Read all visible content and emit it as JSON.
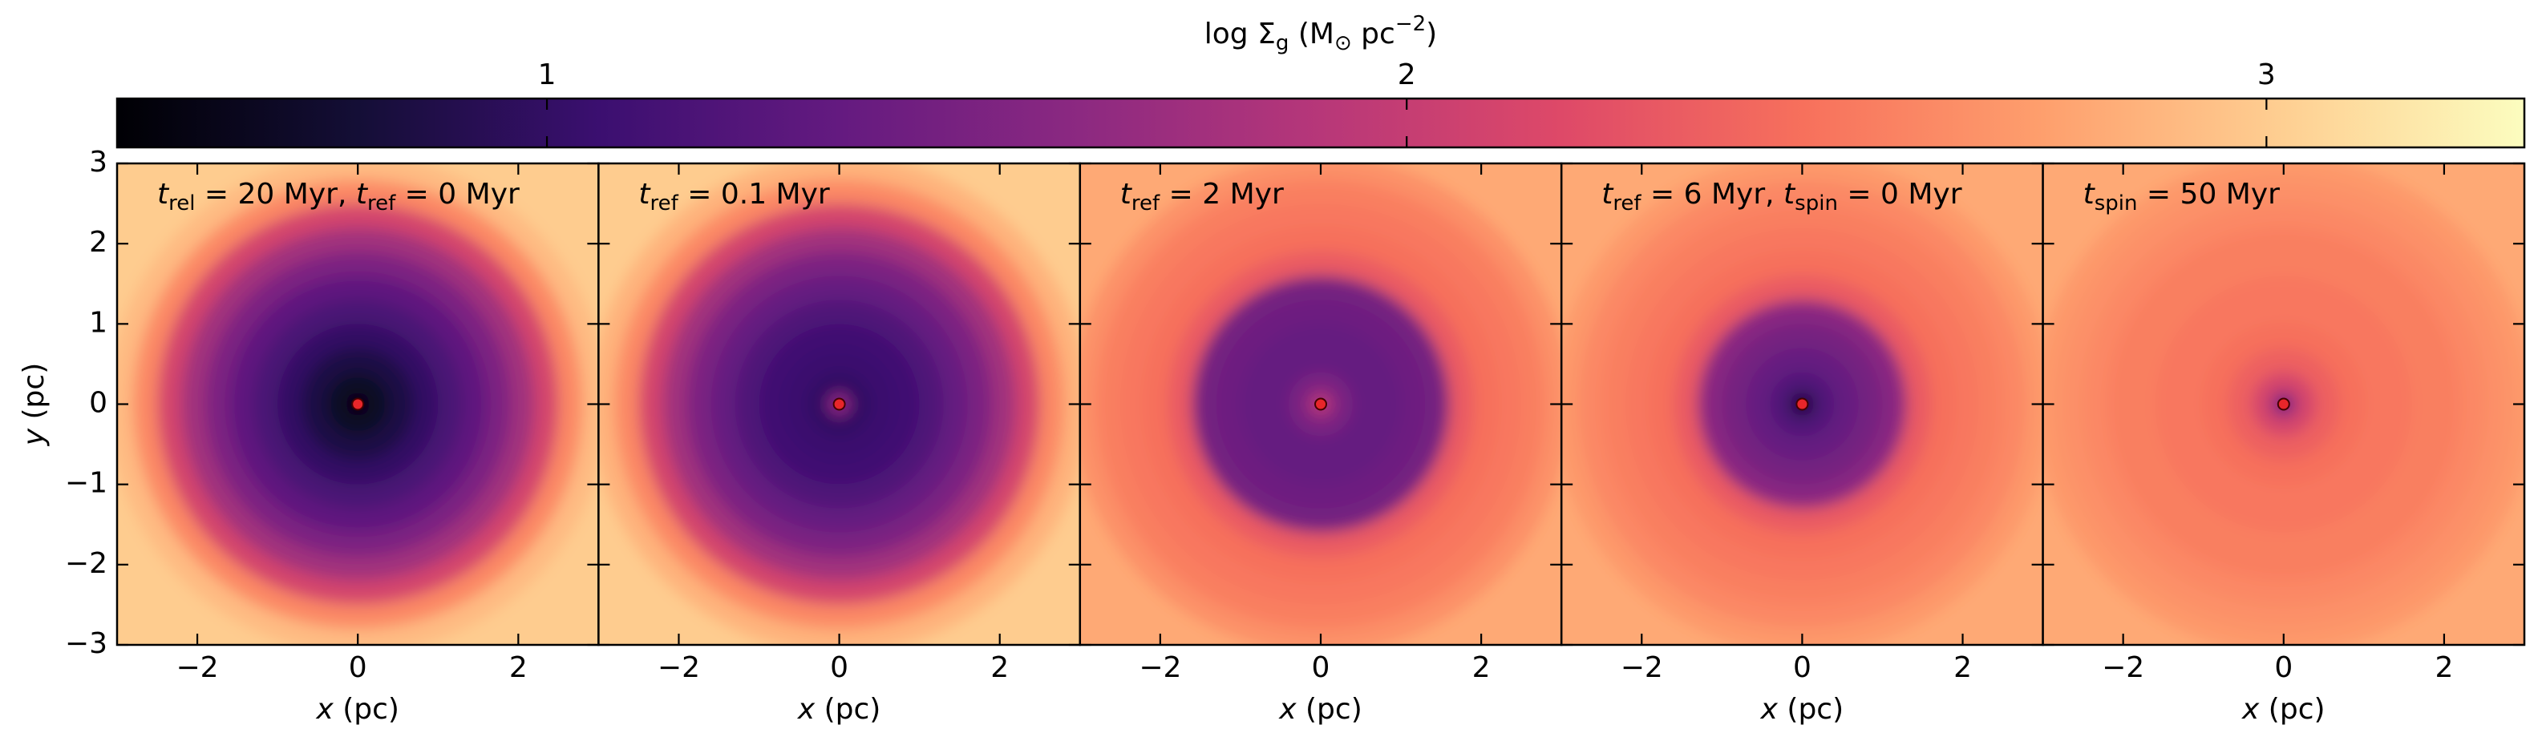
{
  "colorbar": {
    "label": [
      {
        "text": "log Σ"
      },
      {
        "sub": "g"
      },
      {
        "text": " (M"
      },
      {
        "sub": "⊙"
      },
      {
        "text": " pc"
      },
      {
        "sup": "−2"
      },
      {
        "text": ")"
      }
    ],
    "colormap": "magma",
    "lim": [
      0.5,
      3.3
    ],
    "ticks": [
      1,
      2,
      3
    ]
  },
  "chart_data": [
    {
      "type": "heatmap",
      "annotation": [
        {
          "var": "t"
        },
        {
          "sub": "rel"
        },
        {
          "text": " = 20 Myr, "
        },
        {
          "var": "t"
        },
        {
          "sub": "ref"
        },
        {
          "text": " = 0 Myr"
        }
      ],
      "xlabel": [
        {
          "var": "x"
        },
        {
          "text": " (pc)"
        }
      ],
      "ylabel": [
        {
          "var": "y"
        },
        {
          "text": " (pc)"
        }
      ],
      "show_ytick_labels": true,
      "xlim": [
        -3,
        3
      ],
      "ylim": [
        -3,
        3
      ],
      "xticks": [
        {
          "value": -2,
          "label": "−2"
        },
        0,
        2
      ],
      "yticks": [
        {
          "value": -3,
          "label": "−3"
        },
        {
          "value": -2,
          "label": "−2"
        },
        {
          "value": -1,
          "label": "−1"
        },
        0,
        1,
        2,
        3
      ],
      "radius": [
        0.15,
        0.4,
        0.7,
        1,
        1.3,
        1.6,
        1.9,
        2.2,
        2.5,
        2.8,
        3.1,
        4.3
      ],
      "values": [
        0.6,
        0.7,
        0.85,
        1.0,
        1.15,
        1.3,
        1.5,
        1.75,
        2.1,
        2.6,
        2.9,
        3.0
      ],
      "center": {
        "x": 0,
        "y": 0,
        "color": "#e8262a"
      }
    },
    {
      "type": "heatmap",
      "annotation": [
        {
          "var": "t"
        },
        {
          "sub": "ref"
        },
        {
          "text": " = 0.1 Myr"
        }
      ],
      "xlabel": [
        {
          "var": "x"
        },
        {
          "text": " (pc)"
        }
      ],
      "show_ytick_labels": false,
      "xlim": [
        -3,
        3
      ],
      "ylim": [
        -3,
        3
      ],
      "xticks": [
        {
          "value": -2,
          "label": "−2"
        },
        0,
        2
      ],
      "yticks": [
        {
          "value": -3,
          "label": "−3"
        },
        {
          "value": -2,
          "label": "−2"
        },
        {
          "value": -1,
          "label": "−1"
        },
        0,
        1,
        2,
        3
      ],
      "radius": [
        0.15,
        0.4,
        0.7,
        1,
        1.3,
        1.6,
        1.9,
        2.2,
        2.5,
        2.8,
        3.1,
        4.3
      ],
      "values": [
        1.6,
        1.0,
        1.05,
        1.1,
        1.2,
        1.35,
        1.5,
        1.75,
        2.1,
        2.6,
        2.85,
        3.0
      ],
      "center": {
        "x": 0,
        "y": 0,
        "color": "#e8262a"
      }
    },
    {
      "type": "heatmap",
      "annotation": [
        {
          "var": "t"
        },
        {
          "sub": "ref"
        },
        {
          "text": " = 2 Myr"
        }
      ],
      "xlabel": [
        {
          "var": "x"
        },
        {
          "text": " (pc)"
        }
      ],
      "show_ytick_labels": false,
      "xlim": [
        -3,
        3
      ],
      "ylim": [
        -3,
        3
      ],
      "xticks": [
        {
          "value": -2,
          "label": "−2"
        },
        0,
        2
      ],
      "yticks": [
        {
          "value": -3,
          "label": "−3"
        },
        {
          "value": -2,
          "label": "−2"
        },
        {
          "value": -1,
          "label": "−1"
        },
        0,
        1,
        2,
        3
      ],
      "radius": [
        0.15,
        0.4,
        0.7,
        1,
        1.3,
        1.6,
        1.9,
        2.2,
        2.5,
        2.8,
        3.1,
        4.3
      ],
      "values": [
        1.9,
        1.5,
        1.35,
        1.35,
        1.4,
        1.45,
        2.3,
        2.45,
        2.5,
        2.55,
        2.65,
        2.8
      ],
      "center": {
        "x": 0,
        "y": 0,
        "color": "#e8262a"
      }
    },
    {
      "type": "heatmap",
      "annotation": [
        {
          "var": "t"
        },
        {
          "sub": "ref"
        },
        {
          "text": " = 6 Myr, "
        },
        {
          "var": "t"
        },
        {
          "sub": "spin"
        },
        {
          "text": " = 0 Myr"
        }
      ],
      "xlabel": [
        {
          "var": "x"
        },
        {
          "text": " (pc)"
        }
      ],
      "show_ytick_labels": false,
      "xlim": [
        -3,
        3
      ],
      "ylim": [
        -3,
        3
      ],
      "xticks": [
        {
          "value": -2,
          "label": "−2"
        },
        0,
        2
      ],
      "yticks": [
        {
          "value": -3,
          "label": "−3"
        },
        {
          "value": -2,
          "label": "−2"
        },
        {
          "value": -1,
          "label": "−1"
        },
        0,
        1,
        2,
        3
      ],
      "radius": [
        0.15,
        0.4,
        0.7,
        1,
        1.3,
        1.6,
        1.9,
        2.2,
        2.5,
        2.8,
        3.1,
        4.3
      ],
      "values": [
        0.8,
        1.2,
        1.35,
        1.45,
        1.6,
        2.3,
        2.45,
        2.5,
        2.55,
        2.6,
        2.7,
        2.8
      ],
      "center": {
        "x": 0,
        "y": 0,
        "color": "#e8262a"
      }
    },
    {
      "type": "heatmap",
      "annotation": [
        {
          "var": "t"
        },
        {
          "sub": "spin"
        },
        {
          "text": " = 50 Myr"
        }
      ],
      "xlabel": [
        {
          "var": "x"
        },
        {
          "text": " (pc)"
        }
      ],
      "show_ytick_labels": false,
      "xlim": [
        -3,
        3
      ],
      "ylim": [
        -3,
        3
      ],
      "xticks": [
        {
          "value": -2,
          "label": "−2"
        },
        0,
        2
      ],
      "yticks": [
        {
          "value": -3,
          "label": "−3"
        },
        {
          "value": -2,
          "label": "−2"
        },
        {
          "value": -1,
          "label": "−1"
        },
        0,
        1,
        2,
        3
      ],
      "radius": [
        0.15,
        0.4,
        0.7,
        1,
        1.3,
        1.6,
        1.9,
        2.2,
        2.5,
        2.8,
        3.1,
        4.3
      ],
      "values": [
        1.5,
        2.1,
        2.35,
        2.45,
        2.5,
        2.5,
        2.55,
        2.55,
        2.6,
        2.65,
        2.7,
        2.8
      ],
      "center": {
        "x": 0,
        "y": 0,
        "color": "#e8262a"
      }
    }
  ]
}
